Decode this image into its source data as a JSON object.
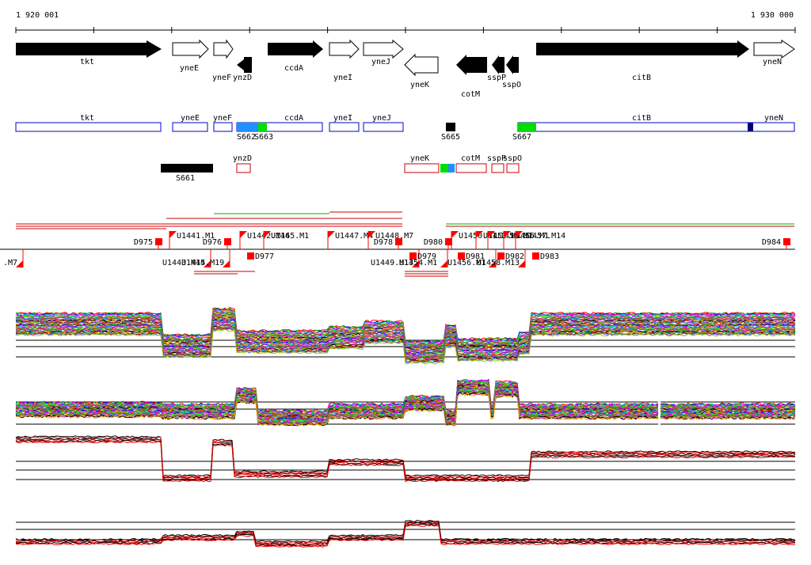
{
  "ruler": {
    "start_label": "1 920 001",
    "end_label": "1 930 000"
  },
  "genes_track": [
    {
      "name": "tkt",
      "strand": "+",
      "filled": true
    },
    {
      "name": "yneE",
      "strand": "+",
      "filled": false
    },
    {
      "name": "yneF",
      "strand": "+",
      "filled": false
    },
    {
      "name": "ynzD",
      "strand": "-",
      "filled": true
    },
    {
      "name": "ccdA",
      "strand": "+",
      "filled": true
    },
    {
      "name": "yneI",
      "strand": "+",
      "filled": false
    },
    {
      "name": "yneJ",
      "strand": "+",
      "filled": false
    },
    {
      "name": "yneK",
      "strand": "-",
      "filled": false
    },
    {
      "name": "cotM",
      "strand": "-",
      "filled": true
    },
    {
      "name": "sspP",
      "strand": "-",
      "filled": true
    },
    {
      "name": "sspO",
      "strand": "-",
      "filled": true
    },
    {
      "name": "citB",
      "strand": "+",
      "filled": true
    },
    {
      "name": "yneN",
      "strand": "+",
      "filled": false
    }
  ],
  "regions_track": {
    "forward": [
      "tkt",
      "yneE",
      "yneF",
      "ccdA",
      "yneI",
      "yneJ",
      "citB",
      "yneN"
    ],
    "reverse": [
      "ynzD",
      "yneK",
      "cotM",
      "sspP",
      "sspO"
    ],
    "segments": [
      "S661",
      "S662",
      "S663",
      "S665",
      "S667"
    ]
  },
  "features_track": {
    "upper_labels": [
      "D975",
      "U1441.M1",
      "D976",
      "U1442.M16",
      "U1445.M1",
      "U1447.M4",
      "U1448.M7",
      "D978",
      "D980",
      "U1450.M1",
      "U1452.M1",
      "U1453.M1",
      "U1455.M1",
      "U1457.M14",
      "D984"
    ],
    "lower_labels": [
      ".M7",
      "U1443.M15",
      "U1444.M19",
      "D977",
      "U1449.M13",
      "D979",
      "U1454.M1",
      "D981",
      "U1456.M1",
      "D982",
      "U1458.M13",
      "D983"
    ]
  },
  "colors": {
    "outline_blue": "#0000cc",
    "outline_red": "#cc0000",
    "segment_cyan": "#1e90ff",
    "segment_green": "#00dd00",
    "segment_navy": "#000080",
    "feature_red": "#ff0000",
    "track_black": "#000000",
    "track_red": "#ee0000"
  }
}
